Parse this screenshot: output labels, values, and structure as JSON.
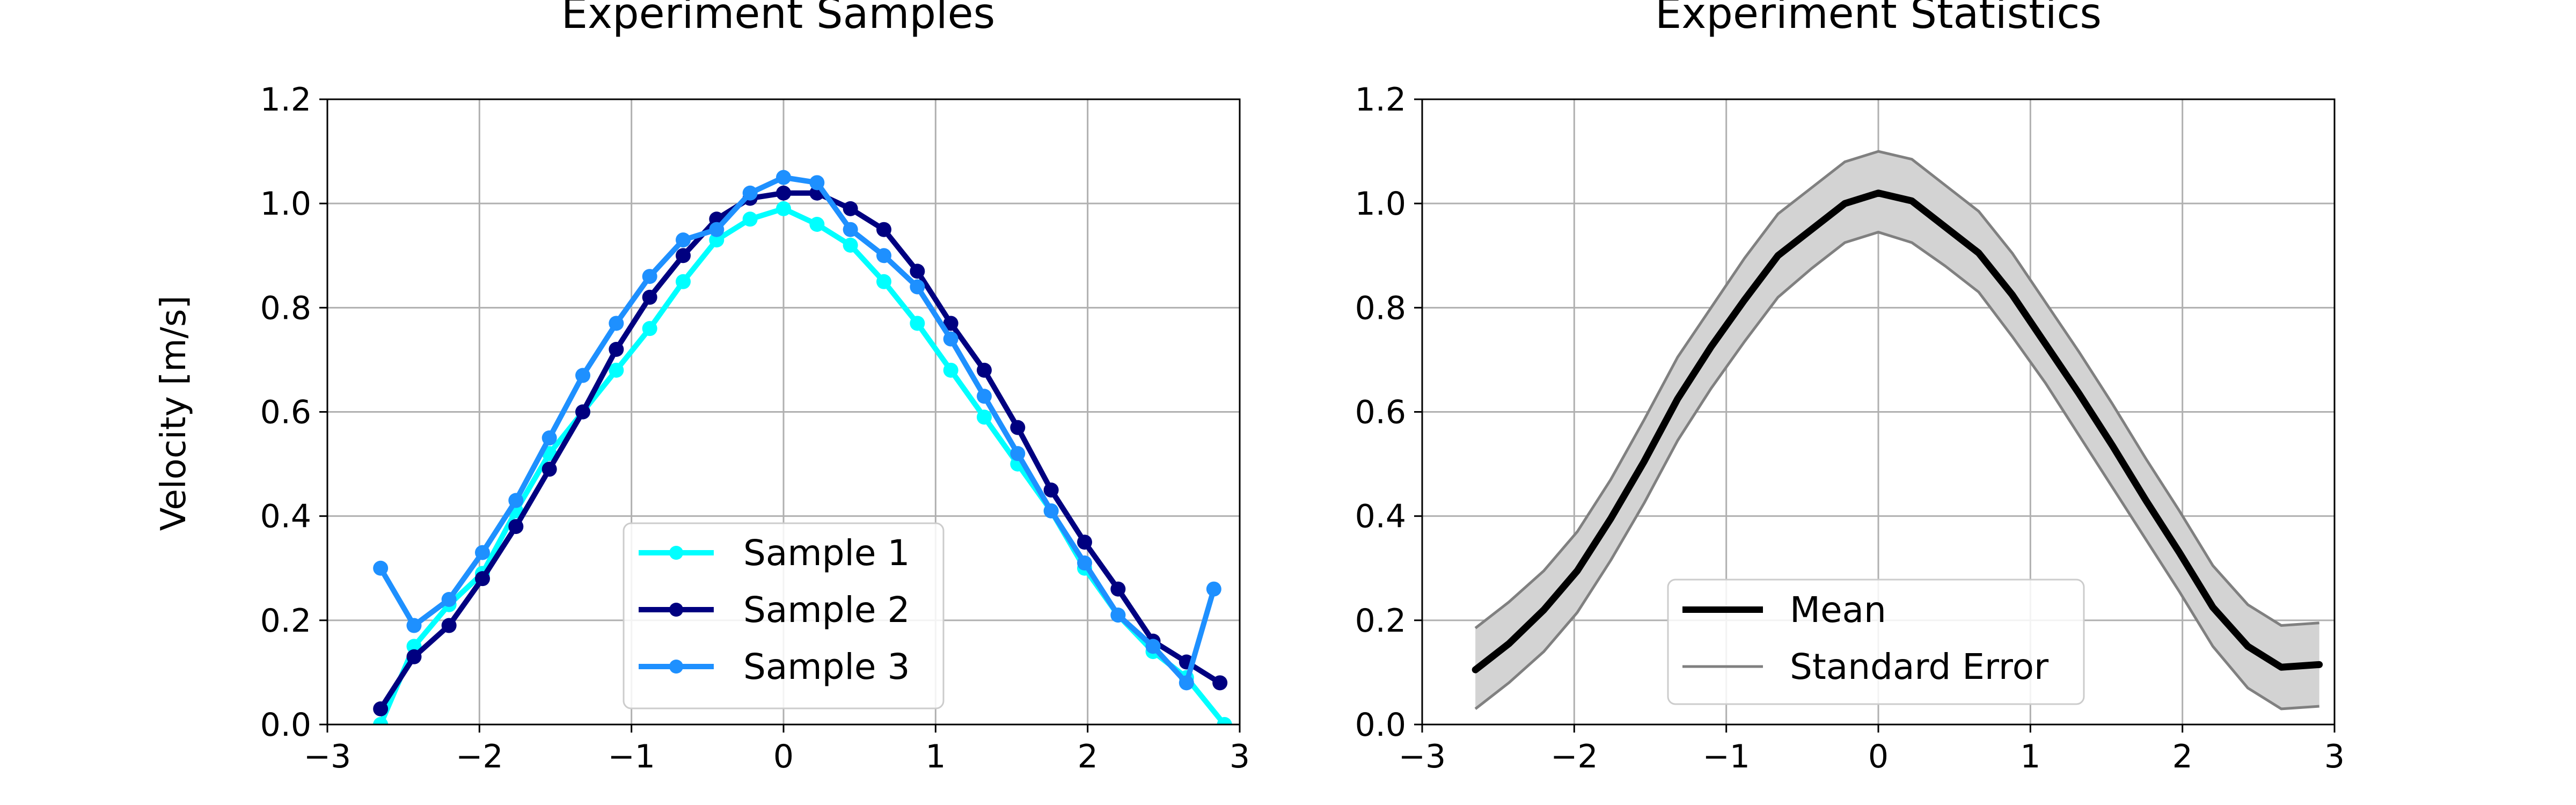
{
  "chart_data": [
    {
      "type": "line",
      "title": "Experiment Samples",
      "xlabel": "",
      "ylabel": "Velocity [m/s]",
      "xlim": [
        -3,
        3
      ],
      "ylim": [
        0.0,
        1.2
      ],
      "xticks": [
        "−3",
        "−2",
        "−1",
        "0",
        "1",
        "2",
        "3"
      ],
      "yticks": [
        "0.0",
        "0.2",
        "0.4",
        "0.6",
        "0.8",
        "1.0",
        "1.2"
      ],
      "grid": true,
      "legend_position": "lower-center",
      "series": [
        {
          "name": "Sample 1",
          "color": "#00ffff",
          "x": [
            -2.65,
            -2.43,
            -2.2,
            -1.98,
            -1.76,
            -1.54,
            -1.32,
            -1.1,
            -0.88,
            -0.66,
            -0.44,
            -0.22,
            0.0,
            0.22,
            0.44,
            0.66,
            0.88,
            1.1,
            1.32,
            1.54,
            1.76,
            1.98,
            2.2,
            2.43,
            2.65,
            2.9
          ],
          "y": [
            0.0,
            0.15,
            0.23,
            0.29,
            0.41,
            0.52,
            0.6,
            0.68,
            0.76,
            0.85,
            0.93,
            0.97,
            0.99,
            0.96,
            0.92,
            0.85,
            0.77,
            0.68,
            0.59,
            0.5,
            0.41,
            0.3,
            0.21,
            0.14,
            0.09,
            0.0
          ]
        },
        {
          "name": "Sample 2",
          "color": "#000080",
          "x": [
            -2.65,
            -2.43,
            -2.2,
            -1.98,
            -1.76,
            -1.54,
            -1.32,
            -1.1,
            -0.88,
            -0.66,
            -0.44,
            -0.22,
            0.0,
            0.22,
            0.44,
            0.66,
            0.88,
            1.1,
            1.32,
            1.54,
            1.76,
            1.98,
            2.2,
            2.43,
            2.65,
            2.87
          ],
          "y": [
            0.03,
            0.13,
            0.19,
            0.28,
            0.38,
            0.49,
            0.6,
            0.72,
            0.82,
            0.9,
            0.97,
            1.01,
            1.02,
            1.02,
            0.99,
            0.95,
            0.87,
            0.77,
            0.68,
            0.57,
            0.45,
            0.35,
            0.26,
            0.16,
            0.12,
            0.08
          ]
        },
        {
          "name": "Sample 3",
          "color": "#1e90ff",
          "x": [
            -2.65,
            -2.43,
            -2.2,
            -1.98,
            -1.76,
            -1.54,
            -1.32,
            -1.1,
            -0.88,
            -0.66,
            -0.44,
            -0.22,
            0.0,
            0.22,
            0.44,
            0.66,
            0.88,
            1.1,
            1.32,
            1.54,
            1.76,
            1.98,
            2.2,
            2.43,
            2.65,
            2.83
          ],
          "y": [
            0.3,
            0.19,
            0.24,
            0.33,
            0.43,
            0.55,
            0.67,
            0.77,
            0.86,
            0.93,
            0.95,
            1.02,
            1.05,
            1.04,
            0.95,
            0.9,
            0.84,
            0.74,
            0.63,
            0.52,
            0.41,
            0.31,
            0.21,
            0.15,
            0.08,
            0.26
          ]
        }
      ]
    },
    {
      "type": "line",
      "title": "Experiment Statistics",
      "xlabel": "",
      "ylabel": "",
      "xlim": [
        -3,
        3
      ],
      "ylim": [
        0.0,
        1.2
      ],
      "xticks": [
        "−3",
        "−2",
        "−1",
        "0",
        "1",
        "2",
        "3"
      ],
      "yticks": [
        "0.0",
        "0.2",
        "0.4",
        "0.6",
        "0.8",
        "1.0",
        "1.2"
      ],
      "grid": true,
      "legend_position": "lower-center",
      "series": [
        {
          "name": "Mean",
          "color": "#000000",
          "x": [
            -2.65,
            -2.43,
            -2.2,
            -1.98,
            -1.76,
            -1.54,
            -1.32,
            -1.1,
            -0.88,
            -0.66,
            -0.44,
            -0.22,
            0.0,
            0.22,
            0.44,
            0.66,
            0.88,
            1.1,
            1.32,
            1.54,
            1.76,
            1.98,
            2.2,
            2.43,
            2.65,
            2.9
          ],
          "y": [
            0.105,
            0.155,
            0.22,
            0.295,
            0.395,
            0.505,
            0.625,
            0.725,
            0.815,
            0.9,
            0.95,
            1.0,
            1.02,
            1.005,
            0.955,
            0.905,
            0.825,
            0.73,
            0.635,
            0.535,
            0.43,
            0.33,
            0.225,
            0.15,
            0.11,
            0.115
          ]
        },
        {
          "name": "Standard Error",
          "color": "#808080",
          "band_fill": "#d3d3d3",
          "x": [
            -2.65,
            -2.43,
            -2.2,
            -1.98,
            -1.76,
            -1.54,
            -1.32,
            -1.1,
            -0.88,
            -0.66,
            -0.44,
            -0.22,
            0.0,
            0.22,
            0.44,
            0.66,
            0.88,
            1.1,
            1.32,
            1.54,
            1.76,
            1.98,
            2.2,
            2.43,
            2.65,
            2.9
          ],
          "upper": [
            0.185,
            0.235,
            0.295,
            0.37,
            0.47,
            0.585,
            0.705,
            0.8,
            0.895,
            0.98,
            1.03,
            1.08,
            1.1,
            1.085,
            1.035,
            0.985,
            0.905,
            0.81,
            0.715,
            0.615,
            0.51,
            0.41,
            0.305,
            0.23,
            0.19,
            0.195
          ],
          "lower": [
            0.03,
            0.08,
            0.14,
            0.215,
            0.315,
            0.425,
            0.545,
            0.645,
            0.735,
            0.82,
            0.875,
            0.925,
            0.945,
            0.925,
            0.88,
            0.83,
            0.745,
            0.655,
            0.555,
            0.455,
            0.355,
            0.255,
            0.15,
            0.07,
            0.03,
            0.035
          ]
        }
      ]
    }
  ]
}
